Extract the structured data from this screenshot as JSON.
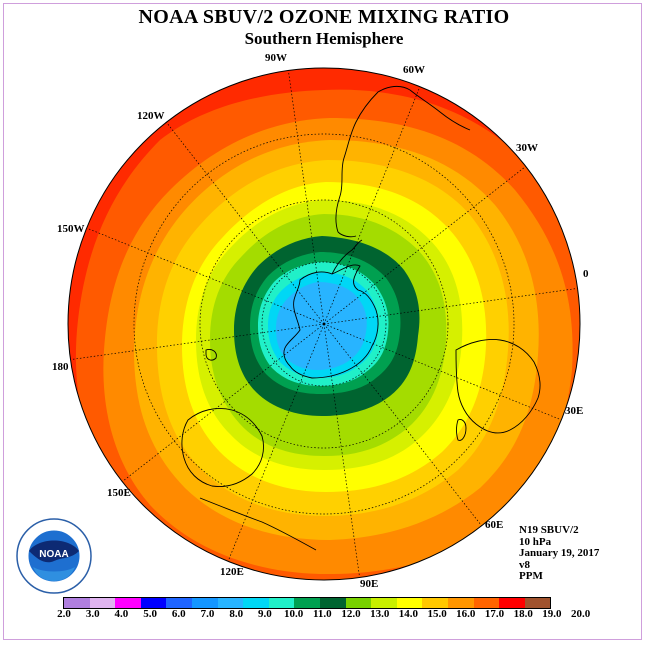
{
  "title": "NOAA SBUV/2 OZONE MIXING RATIO",
  "subtitle": "Southern Hemisphere",
  "longitude_labels": [
    "90W",
    "60W",
    "30W",
    "0",
    "30E",
    "60E",
    "90E",
    "120E",
    "150E",
    "180",
    "150W",
    "120W"
  ],
  "info": {
    "satellite": "N19 SBUV/2",
    "level": "10 hPa",
    "date": "January 19, 2017",
    "version": "v8",
    "units": "PPM"
  },
  "logo": {
    "text": "NOAA",
    "icon": "noaa-logo-icon"
  },
  "colorbar": {
    "labels": [
      "2.0",
      "3.0",
      "4.0",
      "5.0",
      "6.0",
      "7.0",
      "8.0",
      "9.0",
      "10.0",
      "11.0",
      "12.0",
      "13.0",
      "14.0",
      "15.0",
      "16.0",
      "17.0",
      "18.0",
      "19.0",
      "20.0"
    ],
    "colors": [
      "#b07fdf",
      "#e0b4f0",
      "#ff00ff",
      "#0000ff",
      "#1e64ff",
      "#1496ff",
      "#28b4ff",
      "#00d7f5",
      "#20f0c8",
      "#00a050",
      "#006430",
      "#78d200",
      "#c8f000",
      "#ffff00",
      "#ffc800",
      "#ff9600",
      "#ff6400",
      "#ff0000",
      "#a0522d"
    ]
  },
  "map_colors": {
    "ring_20": "#ff2a00",
    "ring_19": "#ff5a00",
    "ring_18": "#ff8a00",
    "ring_17": "#ffb300",
    "ring_16": "#ffd000",
    "ring_15": "#ffff00",
    "ring_14": "#d6f000",
    "ring_13": "#a4dc00",
    "ring_12": "#006430",
    "ring_11": "#00a050",
    "ring_10": "#20f0c8",
    "ring_9": "#00d7f5",
    "ring_8": "#28b4ff"
  }
}
